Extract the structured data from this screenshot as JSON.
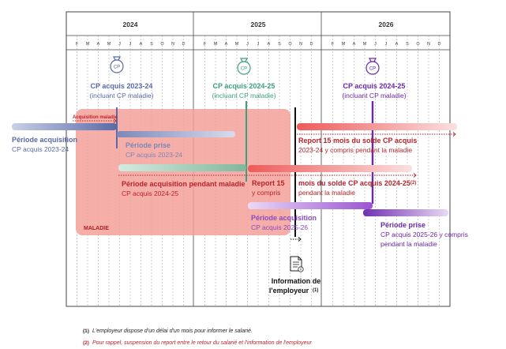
{
  "timeline": {
    "years": [
      "2024",
      "2025",
      "2026"
    ],
    "months": [
      "F",
      "M",
      "A",
      "M",
      "J",
      "J",
      "A",
      "S",
      "O",
      "N",
      "D"
    ]
  },
  "events": {
    "cp1": {
      "icon_label": "CP",
      "title": "CP acquis 2023-24",
      "subtitle": "(incluant CP maladie)"
    },
    "cp2": {
      "icon_label": "CP",
      "title": "CP acquis 2024-25",
      "subtitle": "(incluant CP maladie)"
    },
    "cp3": {
      "icon_label": "CP",
      "title": "CP acquis 2024-25",
      "subtitle": "(incluant CP maladie)"
    }
  },
  "labels": {
    "acq_maladie": "Acquisition maladie",
    "periode_acq": "Période acquisition",
    "periode_acq_sub": "CP acquis 2023-24",
    "prise1": "Période prise",
    "prise1_sub": "CP acquis 2023-24",
    "acq_maladie_long": "Période acquisition pendant maladie",
    "acq_maladie_long_sub": "CP acquis 2024-25",
    "report15": "Report 15",
    "report15_sub": "y compris",
    "report15_full": "Report 15 mois du solde CP acquis",
    "report15_full_sub": "2023-24 y compris pendant la maladie",
    "mois_solde": "mois du solde CP acquis 2024-25",
    "mois_solde_note": "(2)",
    "mois_solde_sub": "pendant la maladie",
    "acq2526": "Période acquisition",
    "acq2526_sub": "CP acquis 2025-26",
    "maladie": "MALADIE",
    "prise2": "Période prise",
    "prise2_sub1": "CP acquis 2025-26 y compris",
    "prise2_sub2": "pendant la maladie",
    "info1": "Information de",
    "info2": "l'employeur",
    "info_note": "(1)"
  },
  "footnotes": [
    {
      "num": "(1)",
      "text": "L'employeur dispose d'un délai d'un mois pour informer le salarié."
    },
    {
      "num": "(2)",
      "text": "Pour rappel, suspension du report entre le retour du salarié et l'information de l'employeur"
    }
  ],
  "colors": {
    "blue": "#5a6aa8",
    "green": "#3fa07c",
    "purple": "#6a2aa8",
    "red": "#b8242a",
    "maladie_fill": "#f5a09a",
    "maladie_text": "#b02020"
  }
}
